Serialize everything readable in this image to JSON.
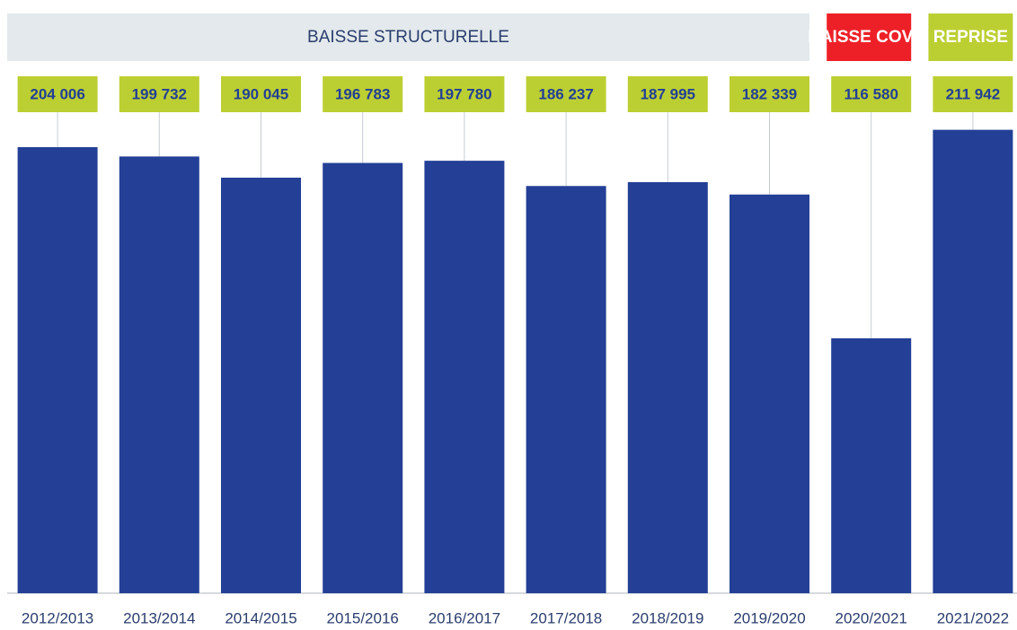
{
  "chart_data": {
    "type": "bar",
    "categories": [
      "2012/2013",
      "2013/2014",
      "2014/2015",
      "2015/2016",
      "2016/2017",
      "2017/2018",
      "2018/2019",
      "2019/2020",
      "2020/2021",
      "2021/2022"
    ],
    "values": [
      204006,
      199732,
      190045,
      196783,
      197780,
      186237,
      187995,
      182339,
      116580,
      211942
    ],
    "value_labels": [
      "204 006",
      "199 732",
      "190 045",
      "196 783",
      "197 780",
      "186 237",
      "187 995",
      "182 339",
      "116 580",
      "211 942"
    ],
    "color": "#233f96",
    "label_color": "#bccf32",
    "ylim": [
      0,
      220000
    ],
    "periods": [
      {
        "label": "BAISSE STRUCTURELLE",
        "color": "#e3e9ec",
        "start": "2012/2013",
        "end": "2019/2020"
      },
      {
        "label": "BAISSE COVID",
        "color": "#ee2027",
        "start": "2020/2021",
        "end": "2020/2021"
      },
      {
        "label": "REPRISE",
        "color": "#bccf32",
        "start": "2021/2022",
        "end": "2021/2022"
      }
    ]
  }
}
